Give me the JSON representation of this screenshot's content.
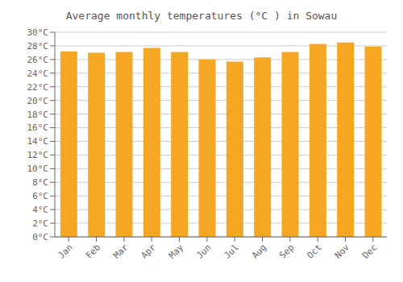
{
  "chart_data": {
    "type": "bar",
    "title": "Average monthly temperatures (°C ) in Sowau",
    "categories": [
      "Jan",
      "Feb",
      "Mar",
      "Apr",
      "May",
      "Jun",
      "Jul",
      "Aug",
      "Sep",
      "Oct",
      "Nov",
      "Dec"
    ],
    "values": [
      27.2,
      27.0,
      27.1,
      27.7,
      27.1,
      26.0,
      25.7,
      26.3,
      27.1,
      28.3,
      28.5,
      27.9
    ],
    "color": "#F5A623",
    "ylim": [
      0,
      30
    ],
    "yticks": [
      {
        "value": 0,
        "label": "0°C"
      },
      {
        "value": 2,
        "label": "2°C"
      },
      {
        "value": 4,
        "label": "4°C"
      },
      {
        "value": 6,
        "label": "6°C"
      },
      {
        "value": 8,
        "label": "8°C"
      },
      {
        "value": 10,
        "label": "10°C"
      },
      {
        "value": 12,
        "label": "12°C"
      },
      {
        "value": 14,
        "label": "14°C"
      },
      {
        "value": 16,
        "label": "16°C"
      },
      {
        "value": 18,
        "label": "18°C"
      },
      {
        "value": 20,
        "label": "20°C"
      },
      {
        "value": 22,
        "label": "22°C"
      },
      {
        "value": 24,
        "label": "24°C"
      },
      {
        "value": 26,
        "label": "26°C"
      },
      {
        "value": 28,
        "label": "28°C"
      },
      {
        "value": 30,
        "label": "30°C"
      }
    ],
    "grid": true
  }
}
